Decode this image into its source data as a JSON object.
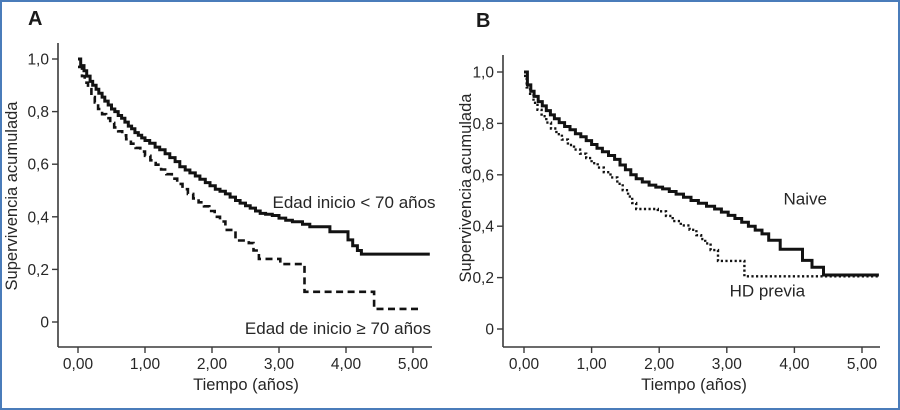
{
  "figure": {
    "border_color": "#4a7cba",
    "background": "#ffffff",
    "curve_color": "#121212",
    "text_color": "#262626"
  },
  "panels": [
    {
      "panel_label": "A"
    },
    {
      "panel_label": "B"
    }
  ],
  "chart_data": [
    {
      "type": "line",
      "subtype": "kaplan-meier-step",
      "panel": "A",
      "xlabel": "Tiempo (años)",
      "ylabel": "Supervivencia acumulada",
      "xlim": [
        0,
        5.3
      ],
      "ylim": [
        0,
        1.0
      ],
      "grid": false,
      "x_ticks": [
        {
          "value": 0,
          "label": "0,00"
        },
        {
          "value": 1,
          "label": "1,00"
        },
        {
          "value": 2,
          "label": "2,00"
        },
        {
          "value": 3,
          "label": "3,00"
        },
        {
          "value": 4,
          "label": "4,00"
        },
        {
          "value": 5,
          "label": "5,00"
        }
      ],
      "y_ticks": [
        {
          "value": 1.0,
          "label": "1,0"
        },
        {
          "value": 0.8,
          "label": "0,8"
        },
        {
          "value": 0.6,
          "label": "0,6"
        },
        {
          "value": 0.4,
          "label": "0,4"
        },
        {
          "value": 0.2,
          "label": "0,2"
        },
        {
          "value": 0.0,
          "label": "0"
        }
      ],
      "series": [
        {
          "name": "Edad inicio < 70 años",
          "style": "solid",
          "label_anchor": {
            "t": 4.12,
            "s": 0.455
          },
          "points": [
            [
              0,
              1.0
            ],
            [
              0.04,
              0.975
            ],
            [
              0.09,
              0.955
            ],
            [
              0.13,
              0.935
            ],
            [
              0.18,
              0.915
            ],
            [
              0.22,
              0.9
            ],
            [
              0.27,
              0.885
            ],
            [
              0.31,
              0.87
            ],
            [
              0.36,
              0.855
            ],
            [
              0.4,
              0.84
            ],
            [
              0.45,
              0.825
            ],
            [
              0.5,
              0.81
            ],
            [
              0.55,
              0.8
            ],
            [
              0.6,
              0.785
            ],
            [
              0.65,
              0.775
            ],
            [
              0.7,
              0.76
            ],
            [
              0.75,
              0.745
            ],
            [
              0.8,
              0.735
            ],
            [
              0.85,
              0.72
            ],
            [
              0.9,
              0.71
            ],
            [
              0.95,
              0.7
            ],
            [
              1.0,
              0.69
            ],
            [
              1.07,
              0.68
            ],
            [
              1.15,
              0.665
            ],
            [
              1.22,
              0.655
            ],
            [
              1.3,
              0.64
            ],
            [
              1.37,
              0.625
            ],
            [
              1.45,
              0.61
            ],
            [
              1.52,
              0.59
            ],
            [
              1.6,
              0.578
            ],
            [
              1.67,
              0.567
            ],
            [
              1.75,
              0.555
            ],
            [
              1.82,
              0.543
            ],
            [
              1.9,
              0.53
            ],
            [
              1.97,
              0.518
            ],
            [
              2.05,
              0.505
            ],
            [
              2.12,
              0.497
            ],
            [
              2.2,
              0.487
            ],
            [
              2.27,
              0.475
            ],
            [
              2.35,
              0.462
            ],
            [
              2.42,
              0.452
            ],
            [
              2.5,
              0.442
            ],
            [
              2.57,
              0.433
            ],
            [
              2.65,
              0.422
            ],
            [
              2.72,
              0.413
            ],
            [
              2.8,
              0.41
            ],
            [
              2.9,
              0.405
            ],
            [
              3.0,
              0.395
            ],
            [
              3.1,
              0.387
            ],
            [
              3.2,
              0.381
            ],
            [
              3.35,
              0.372
            ],
            [
              3.46,
              0.362
            ],
            [
              3.76,
              0.343
            ],
            [
              4.03,
              0.312
            ],
            [
              4.1,
              0.29
            ],
            [
              4.17,
              0.272
            ],
            [
              4.23,
              0.258
            ],
            [
              5.25,
              0.258
            ]
          ]
        },
        {
          "name": "Edad de inicio ≥ 70 años",
          "style": "dashed",
          "label_anchor": {
            "t": 3.88,
            "s": -0.025
          },
          "points": [
            [
              0,
              0.97
            ],
            [
              0.06,
              0.935
            ],
            [
              0.1,
              0.91
            ],
            [
              0.15,
              0.885
            ],
            [
              0.2,
              0.855
            ],
            [
              0.25,
              0.835
            ],
            [
              0.3,
              0.81
            ],
            [
              0.36,
              0.79
            ],
            [
              0.42,
              0.775
            ],
            [
              0.48,
              0.757
            ],
            [
              0.54,
              0.74
            ],
            [
              0.6,
              0.725
            ],
            [
              0.66,
              0.71
            ],
            [
              0.72,
              0.695
            ],
            [
              0.79,
              0.678
            ],
            [
              0.86,
              0.662
            ],
            [
              0.93,
              0.648
            ],
            [
              1.0,
              0.632
            ],
            [
              1.08,
              0.615
            ],
            [
              1.16,
              0.598
            ],
            [
              1.24,
              0.58
            ],
            [
              1.32,
              0.562
            ],
            [
              1.4,
              0.545
            ],
            [
              1.48,
              0.525
            ],
            [
              1.56,
              0.505
            ],
            [
              1.64,
              0.487
            ],
            [
              1.72,
              0.47
            ],
            [
              1.8,
              0.455
            ],
            [
              1.88,
              0.44
            ],
            [
              1.96,
              0.422
            ],
            [
              2.04,
              0.4
            ],
            [
              2.12,
              0.382
            ],
            [
              2.2,
              0.35
            ],
            [
              2.35,
              0.31
            ],
            [
              2.55,
              0.3
            ],
            [
              2.62,
              0.272
            ],
            [
              2.7,
              0.24
            ],
            [
              3.02,
              0.22
            ],
            [
              3.38,
              0.115
            ],
            [
              4.42,
              0.05
            ],
            [
              5.08,
              0.05
            ]
          ]
        }
      ]
    },
    {
      "type": "line",
      "subtype": "kaplan-meier-step",
      "panel": "B",
      "xlabel": "Tiempo (años)",
      "ylabel": "Supervivencia acumulada",
      "xlim": [
        0,
        5.3
      ],
      "ylim": [
        0,
        1.0
      ],
      "grid": false,
      "x_ticks": [
        {
          "value": 0,
          "label": "0,00"
        },
        {
          "value": 1,
          "label": "1,00"
        },
        {
          "value": 2,
          "label": "2,00"
        },
        {
          "value": 3,
          "label": "3,00"
        },
        {
          "value": 4,
          "label": "4,00"
        },
        {
          "value": 5,
          "label": "5,00"
        }
      ],
      "y_ticks": [
        {
          "value": 1.0,
          "label": "1,0"
        },
        {
          "value": 0.8,
          "label": "0,8"
        },
        {
          "value": 0.6,
          "label": "0,6"
        },
        {
          "value": 0.4,
          "label": "0,4"
        },
        {
          "value": 0.2,
          "label": "0,2"
        },
        {
          "value": 0.0,
          "label": "0"
        }
      ],
      "series": [
        {
          "name": "Naive",
          "style": "solid",
          "label_anchor": {
            "t": 4.16,
            "s": 0.505
          },
          "points": [
            [
              0,
              1.0
            ],
            [
              0.05,
              0.95
            ],
            [
              0.1,
              0.925
            ],
            [
              0.15,
              0.905
            ],
            [
              0.21,
              0.885
            ],
            [
              0.27,
              0.868
            ],
            [
              0.33,
              0.85
            ],
            [
              0.39,
              0.833
            ],
            [
              0.45,
              0.818
            ],
            [
              0.52,
              0.803
            ],
            [
              0.6,
              0.788
            ],
            [
              0.68,
              0.775
            ],
            [
              0.76,
              0.76
            ],
            [
              0.84,
              0.748
            ],
            [
              0.92,
              0.733
            ],
            [
              1.0,
              0.718
            ],
            [
              1.08,
              0.703
            ],
            [
              1.16,
              0.69
            ],
            [
              1.25,
              0.675
            ],
            [
              1.34,
              0.66
            ],
            [
              1.42,
              0.638
            ],
            [
              1.5,
              0.62
            ],
            [
              1.58,
              0.6
            ],
            [
              1.66,
              0.585
            ],
            [
              1.75,
              0.572
            ],
            [
              1.85,
              0.56
            ],
            [
              1.95,
              0.552
            ],
            [
              2.05,
              0.545
            ],
            [
              2.15,
              0.535
            ],
            [
              2.25,
              0.525
            ],
            [
              2.36,
              0.513
            ],
            [
              2.47,
              0.5
            ],
            [
              2.58,
              0.489
            ],
            [
              2.7,
              0.478
            ],
            [
              2.82,
              0.467
            ],
            [
              2.92,
              0.455
            ],
            [
              3.02,
              0.442
            ],
            [
              3.12,
              0.43
            ],
            [
              3.22,
              0.415
            ],
            [
              3.32,
              0.4
            ],
            [
              3.42,
              0.385
            ],
            [
              3.52,
              0.37
            ],
            [
              3.62,
              0.345
            ],
            [
              3.79,
              0.31
            ],
            [
              4.12,
              0.267
            ],
            [
              4.26,
              0.24
            ],
            [
              4.43,
              0.21
            ],
            [
              5.25,
              0.21
            ]
          ]
        },
        {
          "name": "HD previa",
          "style": "dotted",
          "label_anchor": {
            "t": 3.6,
            "s": 0.148
          },
          "points": [
            [
              0,
              0.985
            ],
            [
              0.04,
              0.94
            ],
            [
              0.09,
              0.91
            ],
            [
              0.14,
              0.88
            ],
            [
              0.2,
              0.853
            ],
            [
              0.26,
              0.828
            ],
            [
              0.33,
              0.803
            ],
            [
              0.4,
              0.78
            ],
            [
              0.48,
              0.758
            ],
            [
              0.56,
              0.737
            ],
            [
              0.65,
              0.716
            ],
            [
              0.74,
              0.698
            ],
            [
              0.83,
              0.682
            ],
            [
              0.92,
              0.665
            ],
            [
              1.0,
              0.645
            ],
            [
              1.09,
              0.628
            ],
            [
              1.18,
              0.61
            ],
            [
              1.28,
              0.59
            ],
            [
              1.38,
              0.565
            ],
            [
              1.46,
              0.54
            ],
            [
              1.54,
              0.515
            ],
            [
              1.6,
              0.49
            ],
            [
              1.66,
              0.467
            ],
            [
              1.98,
              0.458
            ],
            [
              2.1,
              0.44
            ],
            [
              2.2,
              0.42
            ],
            [
              2.32,
              0.403
            ],
            [
              2.45,
              0.386
            ],
            [
              2.55,
              0.365
            ],
            [
              2.62,
              0.35
            ],
            [
              2.68,
              0.333
            ],
            [
              2.76,
              0.307
            ],
            [
              2.87,
              0.265
            ],
            [
              3.26,
              0.205
            ],
            [
              5.25,
              0.205
            ]
          ]
        }
      ]
    }
  ]
}
